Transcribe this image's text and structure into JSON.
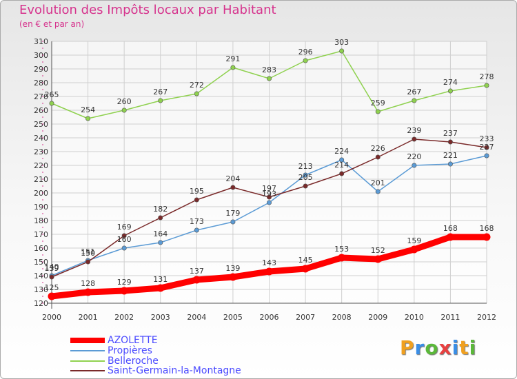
{
  "chart_data": {
    "type": "line",
    "title": "Evolution des Impôts locaux par Habitant",
    "subtitle": "(en € et par an)",
    "x": [
      "2000",
      "2001",
      "2002",
      "2003",
      "2004",
      "2005",
      "2006",
      "2007",
      "2008",
      "2009",
      "2010",
      "2011",
      "2012"
    ],
    "ylim": [
      120,
      310
    ],
    "yticks": [
      120,
      130,
      140,
      150,
      160,
      170,
      180,
      190,
      200,
      210,
      220,
      230,
      240,
      250,
      260,
      270,
      280,
      290,
      300,
      310
    ],
    "grid": true,
    "legend_position": "bottom-left",
    "series": [
      {
        "name": "AZOLETTE",
        "color": "#ff0000",
        "values": [
          125,
          128,
          129,
          131,
          137,
          139,
          143,
          145,
          153,
          152,
          159,
          168,
          168
        ]
      },
      {
        "name": "Propières",
        "color": "#5b9bd5",
        "values": [
          140,
          151,
          160,
          164,
          173,
          179,
          193,
          213,
          224,
          201,
          220,
          221,
          227
        ]
      },
      {
        "name": "Belleroche",
        "color": "#8fd14f",
        "values": [
          265,
          254,
          260,
          267,
          272,
          291,
          283,
          296,
          303,
          259,
          267,
          274,
          278
        ]
      },
      {
        "name": "Saint-Germain-la-Montagne",
        "color": "#7a2a2a",
        "values": [
          139,
          150,
          169,
          182,
          195,
          204,
          197,
          205,
          214,
          226,
          239,
          237,
          233
        ]
      }
    ]
  },
  "logo": {
    "letters": [
      "P",
      "r",
      "o",
      "x",
      "i",
      "t",
      "i"
    ],
    "colors": [
      "#f0a020",
      "#3a8ee6",
      "#5bb83a",
      "#e84040",
      "#3a8ee6",
      "#f0a020",
      "#5bb83a"
    ]
  }
}
